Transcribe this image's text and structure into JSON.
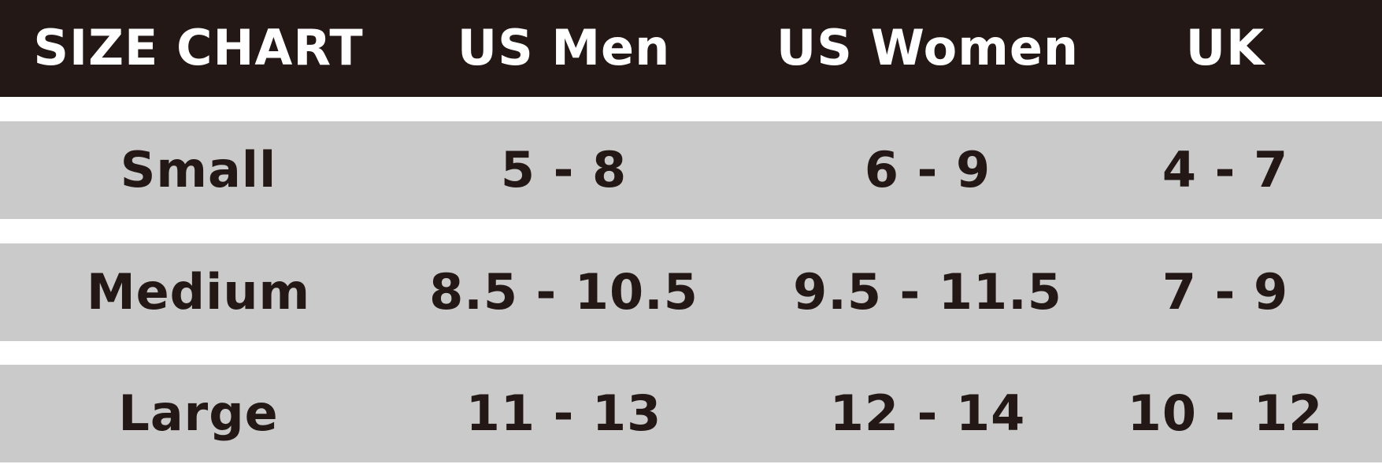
{
  "table": {
    "header": [
      "SIZE CHART",
      "US Men",
      "US Women",
      "UK"
    ],
    "rows": [
      [
        "Small",
        "5 - 8",
        "6 - 9",
        "4 - 7"
      ],
      [
        "Medium",
        "8.5 - 10.5",
        "9.5 - 11.5",
        "7 - 9"
      ],
      [
        "Large",
        "11 - 13",
        "12 - 14",
        "10 - 12"
      ]
    ]
  }
}
